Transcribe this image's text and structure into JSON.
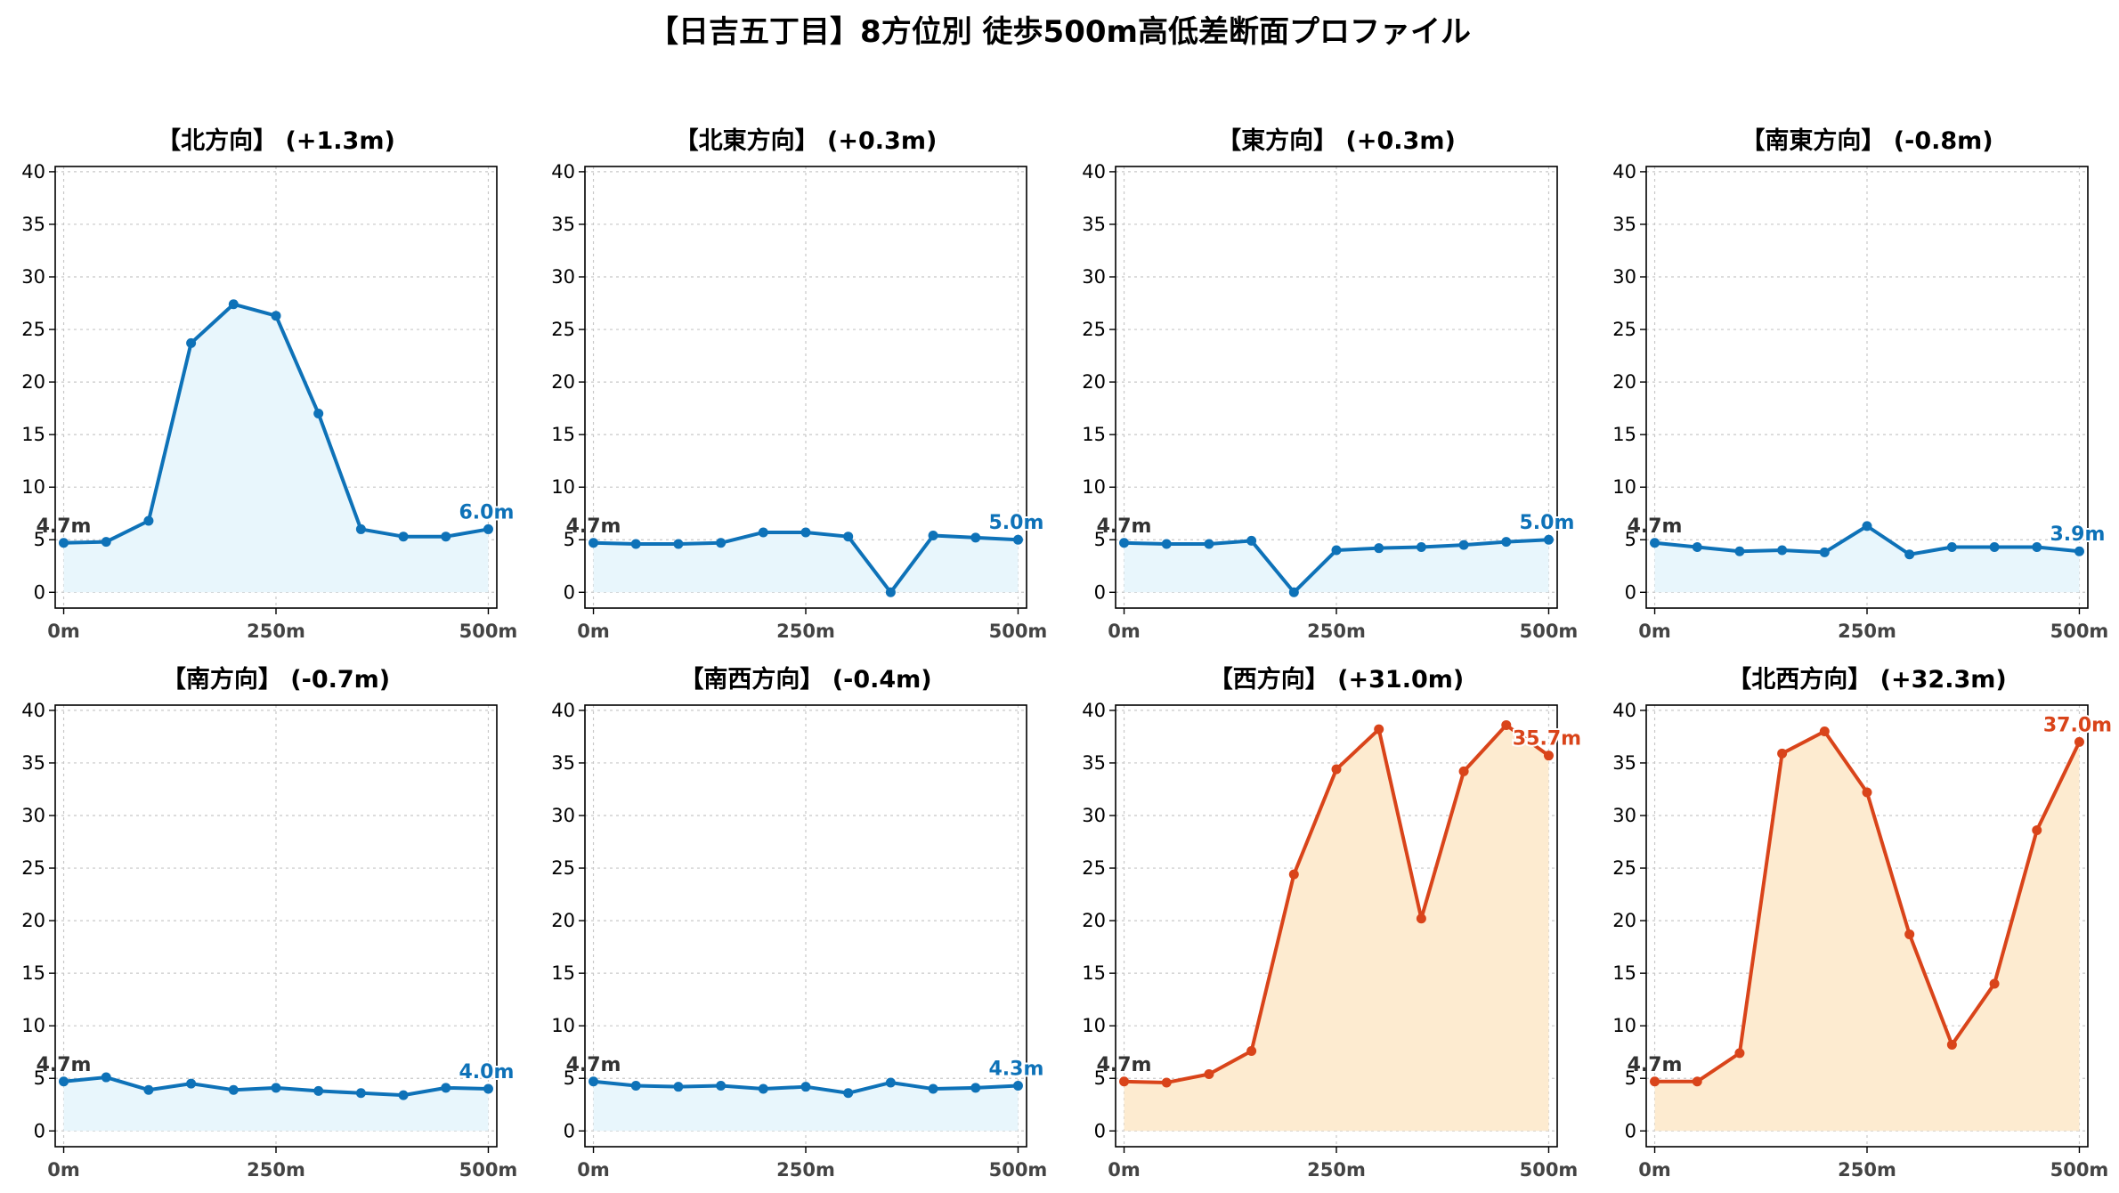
{
  "title": "【日吉五丁目】8方位別 徒歩500m高低差断面プロファイル",
  "colors": {
    "flat_line": "#1f77b4",
    "flat_line_dark": "#0e72b8",
    "flat_fill": "#e8f6fc",
    "hill_line": "#d9441a",
    "hill_fill": "#fdebd0"
  },
  "chart_data": [
    {
      "type": "area",
      "title": "【北方向】 (+1.3m)",
      "theme": "flat",
      "x": [
        0,
        50,
        100,
        150,
        200,
        250,
        300,
        350,
        400,
        450,
        500
      ],
      "values": [
        4.7,
        4.8,
        6.8,
        23.7,
        27.4,
        26.3,
        17.0,
        6.0,
        5.3,
        5.3,
        6.0
      ],
      "start_label": "4.7m",
      "end_label": "6.0m",
      "xticks": [
        "0m",
        "250m",
        "500m"
      ],
      "yticks": [
        0,
        5,
        10,
        15,
        20,
        25,
        30,
        35,
        40
      ],
      "ylim": [
        -1.5,
        40.5
      ],
      "grid": true
    },
    {
      "type": "area",
      "title": "【北東方向】 (+0.3m)",
      "theme": "flat",
      "x": [
        0,
        50,
        100,
        150,
        200,
        250,
        300,
        350,
        400,
        450,
        500
      ],
      "values": [
        4.7,
        4.6,
        4.6,
        4.7,
        5.7,
        5.7,
        5.3,
        0.0,
        5.4,
        5.2,
        5.0
      ],
      "start_label": "4.7m",
      "end_label": "5.0m",
      "xticks": [
        "0m",
        "250m",
        "500m"
      ],
      "yticks": [
        0,
        5,
        10,
        15,
        20,
        25,
        30,
        35,
        40
      ],
      "ylim": [
        -1.5,
        40.5
      ],
      "grid": true
    },
    {
      "type": "area",
      "title": "【東方向】 (+0.3m)",
      "theme": "flat",
      "x": [
        0,
        50,
        100,
        150,
        200,
        250,
        300,
        350,
        400,
        450,
        500
      ],
      "values": [
        4.7,
        4.6,
        4.6,
        4.9,
        0.0,
        4.0,
        4.2,
        4.3,
        4.5,
        4.8,
        5.0
      ],
      "start_label": "4.7m",
      "end_label": "5.0m",
      "xticks": [
        "0m",
        "250m",
        "500m"
      ],
      "yticks": [
        0,
        5,
        10,
        15,
        20,
        25,
        30,
        35,
        40
      ],
      "ylim": [
        -1.5,
        40.5
      ],
      "grid": true
    },
    {
      "type": "area",
      "title": "【南東方向】 (-0.8m)",
      "theme": "flat",
      "x": [
        0,
        50,
        100,
        150,
        200,
        250,
        300,
        350,
        400,
        450,
        500
      ],
      "values": [
        4.7,
        4.3,
        3.9,
        4.0,
        3.8,
        6.3,
        3.6,
        4.3,
        4.3,
        4.3,
        3.9
      ],
      "start_label": "4.7m",
      "end_label": "3.9m",
      "xticks": [
        "0m",
        "250m",
        "500m"
      ],
      "yticks": [
        0,
        5,
        10,
        15,
        20,
        25,
        30,
        35,
        40
      ],
      "ylim": [
        -1.5,
        40.5
      ],
      "grid": true
    },
    {
      "type": "area",
      "title": "【南方向】 (-0.7m)",
      "theme": "flat",
      "x": [
        0,
        50,
        100,
        150,
        200,
        250,
        300,
        350,
        400,
        450,
        500
      ],
      "values": [
        4.7,
        5.1,
        3.9,
        4.5,
        3.9,
        4.1,
        3.8,
        3.6,
        3.4,
        4.1,
        4.0
      ],
      "start_label": "4.7m",
      "end_label": "4.0m",
      "xticks": [
        "0m",
        "250m",
        "500m"
      ],
      "yticks": [
        0,
        5,
        10,
        15,
        20,
        25,
        30,
        35,
        40
      ],
      "ylim": [
        -1.5,
        40.5
      ],
      "grid": true
    },
    {
      "type": "area",
      "title": "【南西方向】 (-0.4m)",
      "theme": "flat",
      "x": [
        0,
        50,
        100,
        150,
        200,
        250,
        300,
        350,
        400,
        450,
        500
      ],
      "values": [
        4.7,
        4.3,
        4.2,
        4.3,
        4.0,
        4.2,
        3.6,
        4.6,
        4.0,
        4.1,
        4.3
      ],
      "start_label": "4.7m",
      "end_label": "4.3m",
      "xticks": [
        "0m",
        "250m",
        "500m"
      ],
      "yticks": [
        0,
        5,
        10,
        15,
        20,
        25,
        30,
        35,
        40
      ],
      "ylim": [
        -1.5,
        40.5
      ],
      "grid": true
    },
    {
      "type": "area",
      "title": "【西方向】 (+31.0m)",
      "theme": "hill",
      "x": [
        0,
        50,
        100,
        150,
        200,
        250,
        300,
        350,
        400,
        450,
        500
      ],
      "values": [
        4.7,
        4.6,
        5.4,
        7.6,
        24.4,
        34.4,
        38.2,
        20.2,
        34.2,
        38.6,
        35.7
      ],
      "start_label": "4.7m",
      "end_label": "35.7m",
      "xticks": [
        "0m",
        "250m",
        "500m"
      ],
      "yticks": [
        0,
        5,
        10,
        15,
        20,
        25,
        30,
        35,
        40
      ],
      "ylim": [
        -1.5,
        40.5
      ],
      "grid": true
    },
    {
      "type": "area",
      "title": "【北西方向】 (+32.3m)",
      "theme": "hill",
      "x": [
        0,
        50,
        100,
        150,
        200,
        250,
        300,
        350,
        400,
        450,
        500
      ],
      "values": [
        4.7,
        4.7,
        7.4,
        35.9,
        38.0,
        32.2,
        18.7,
        8.2,
        14.0,
        28.6,
        37.0
      ],
      "start_label": "4.7m",
      "end_label": "37.0m",
      "xticks": [
        "0m",
        "250m",
        "500m"
      ],
      "yticks": [
        0,
        5,
        10,
        15,
        20,
        25,
        30,
        35,
        40
      ],
      "ylim": [
        -1.5,
        40.5
      ],
      "grid": true
    }
  ]
}
